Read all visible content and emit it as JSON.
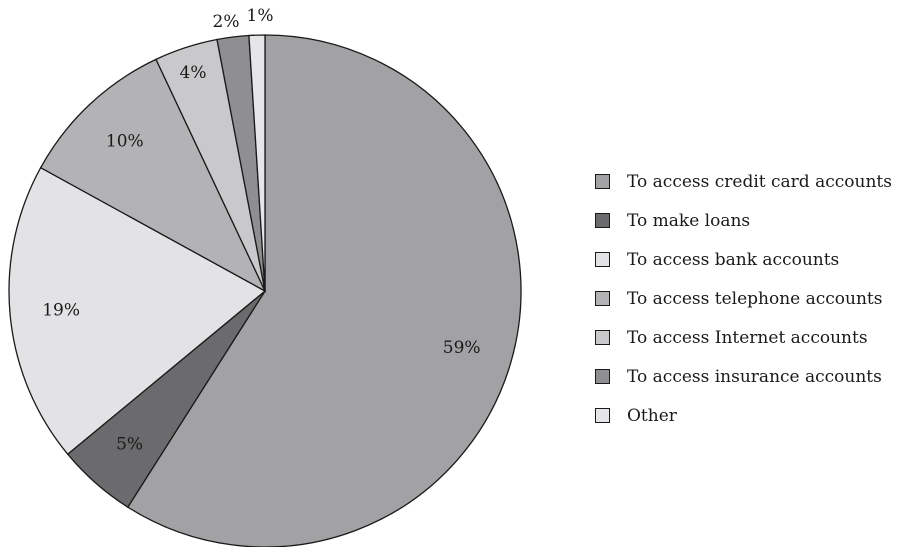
{
  "chart_data": {
    "type": "pie",
    "title": "",
    "start_angle_deg": 0,
    "direction": "clockwise",
    "legend_position": "right",
    "slices": [
      {
        "label": "To access credit card accounts",
        "value": 59,
        "value_label": "59%",
        "color": "#a2a2a5"
      },
      {
        "label": "To make loans",
        "value": 5,
        "value_label": "5%",
        "color": "#6b6b6d"
      },
      {
        "label": "To access bank accounts",
        "value": 19,
        "value_label": "19%",
        "color": "#e3e3e5"
      },
      {
        "label": "To access telephone accounts",
        "value": 10,
        "value_label": "10%",
        "color": "#b3b3b5"
      },
      {
        "label": "To access Internet accounts",
        "value": 4,
        "value_label": "4%",
        "color": "#c9c9cb"
      },
      {
        "label": "To access insurance accounts",
        "value": 2,
        "value_label": "2%",
        "color": "#8f8f92"
      },
      {
        "label": "Other",
        "value": 1,
        "value_label": "1%",
        "color": "#e6e6e8"
      }
    ]
  }
}
